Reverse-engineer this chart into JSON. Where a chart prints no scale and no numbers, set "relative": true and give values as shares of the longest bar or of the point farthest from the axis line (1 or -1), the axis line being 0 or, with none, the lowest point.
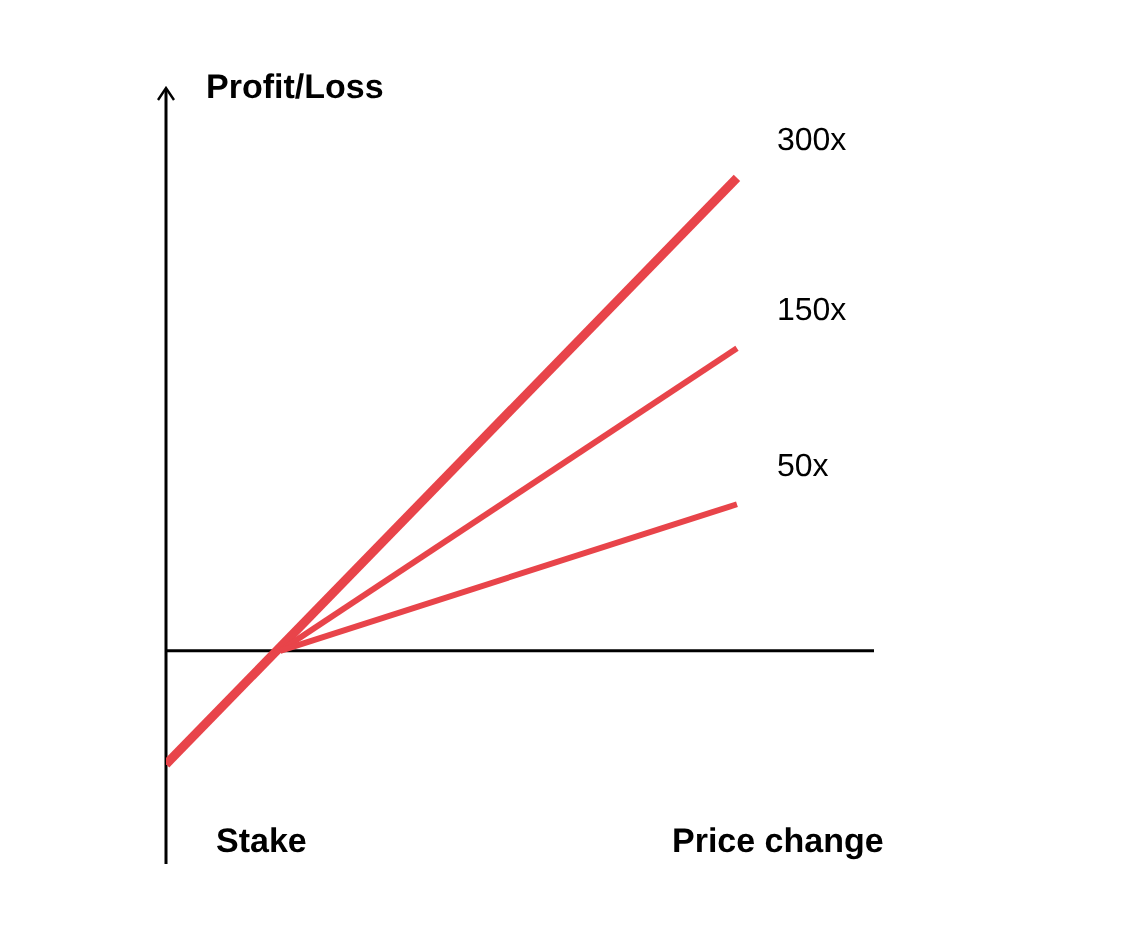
{
  "chart_data": {
    "type": "line",
    "relative": true,
    "ylabel": "Profit/Loss",
    "xlabel": "Price change",
    "annotations": [
      "Stake"
    ],
    "categories": [
      null,
      null,
      null,
      null,
      null,
      null
    ],
    "marker": "none",
    "series": [
      {
        "name": "300x",
        "color": "#e8444a",
        "values": [
          -0.24,
          null,
          null,
          null,
          null,
          1
        ]
      },
      {
        "name": "150x",
        "color": "#e8444a",
        "values": [
          null,
          0,
          null,
          null,
          null,
          0.64
        ]
      },
      {
        "name": "50x",
        "color": "#e8444a",
        "values": [
          null,
          0,
          null,
          null,
          null,
          0.31
        ]
      }
    ]
  }
}
